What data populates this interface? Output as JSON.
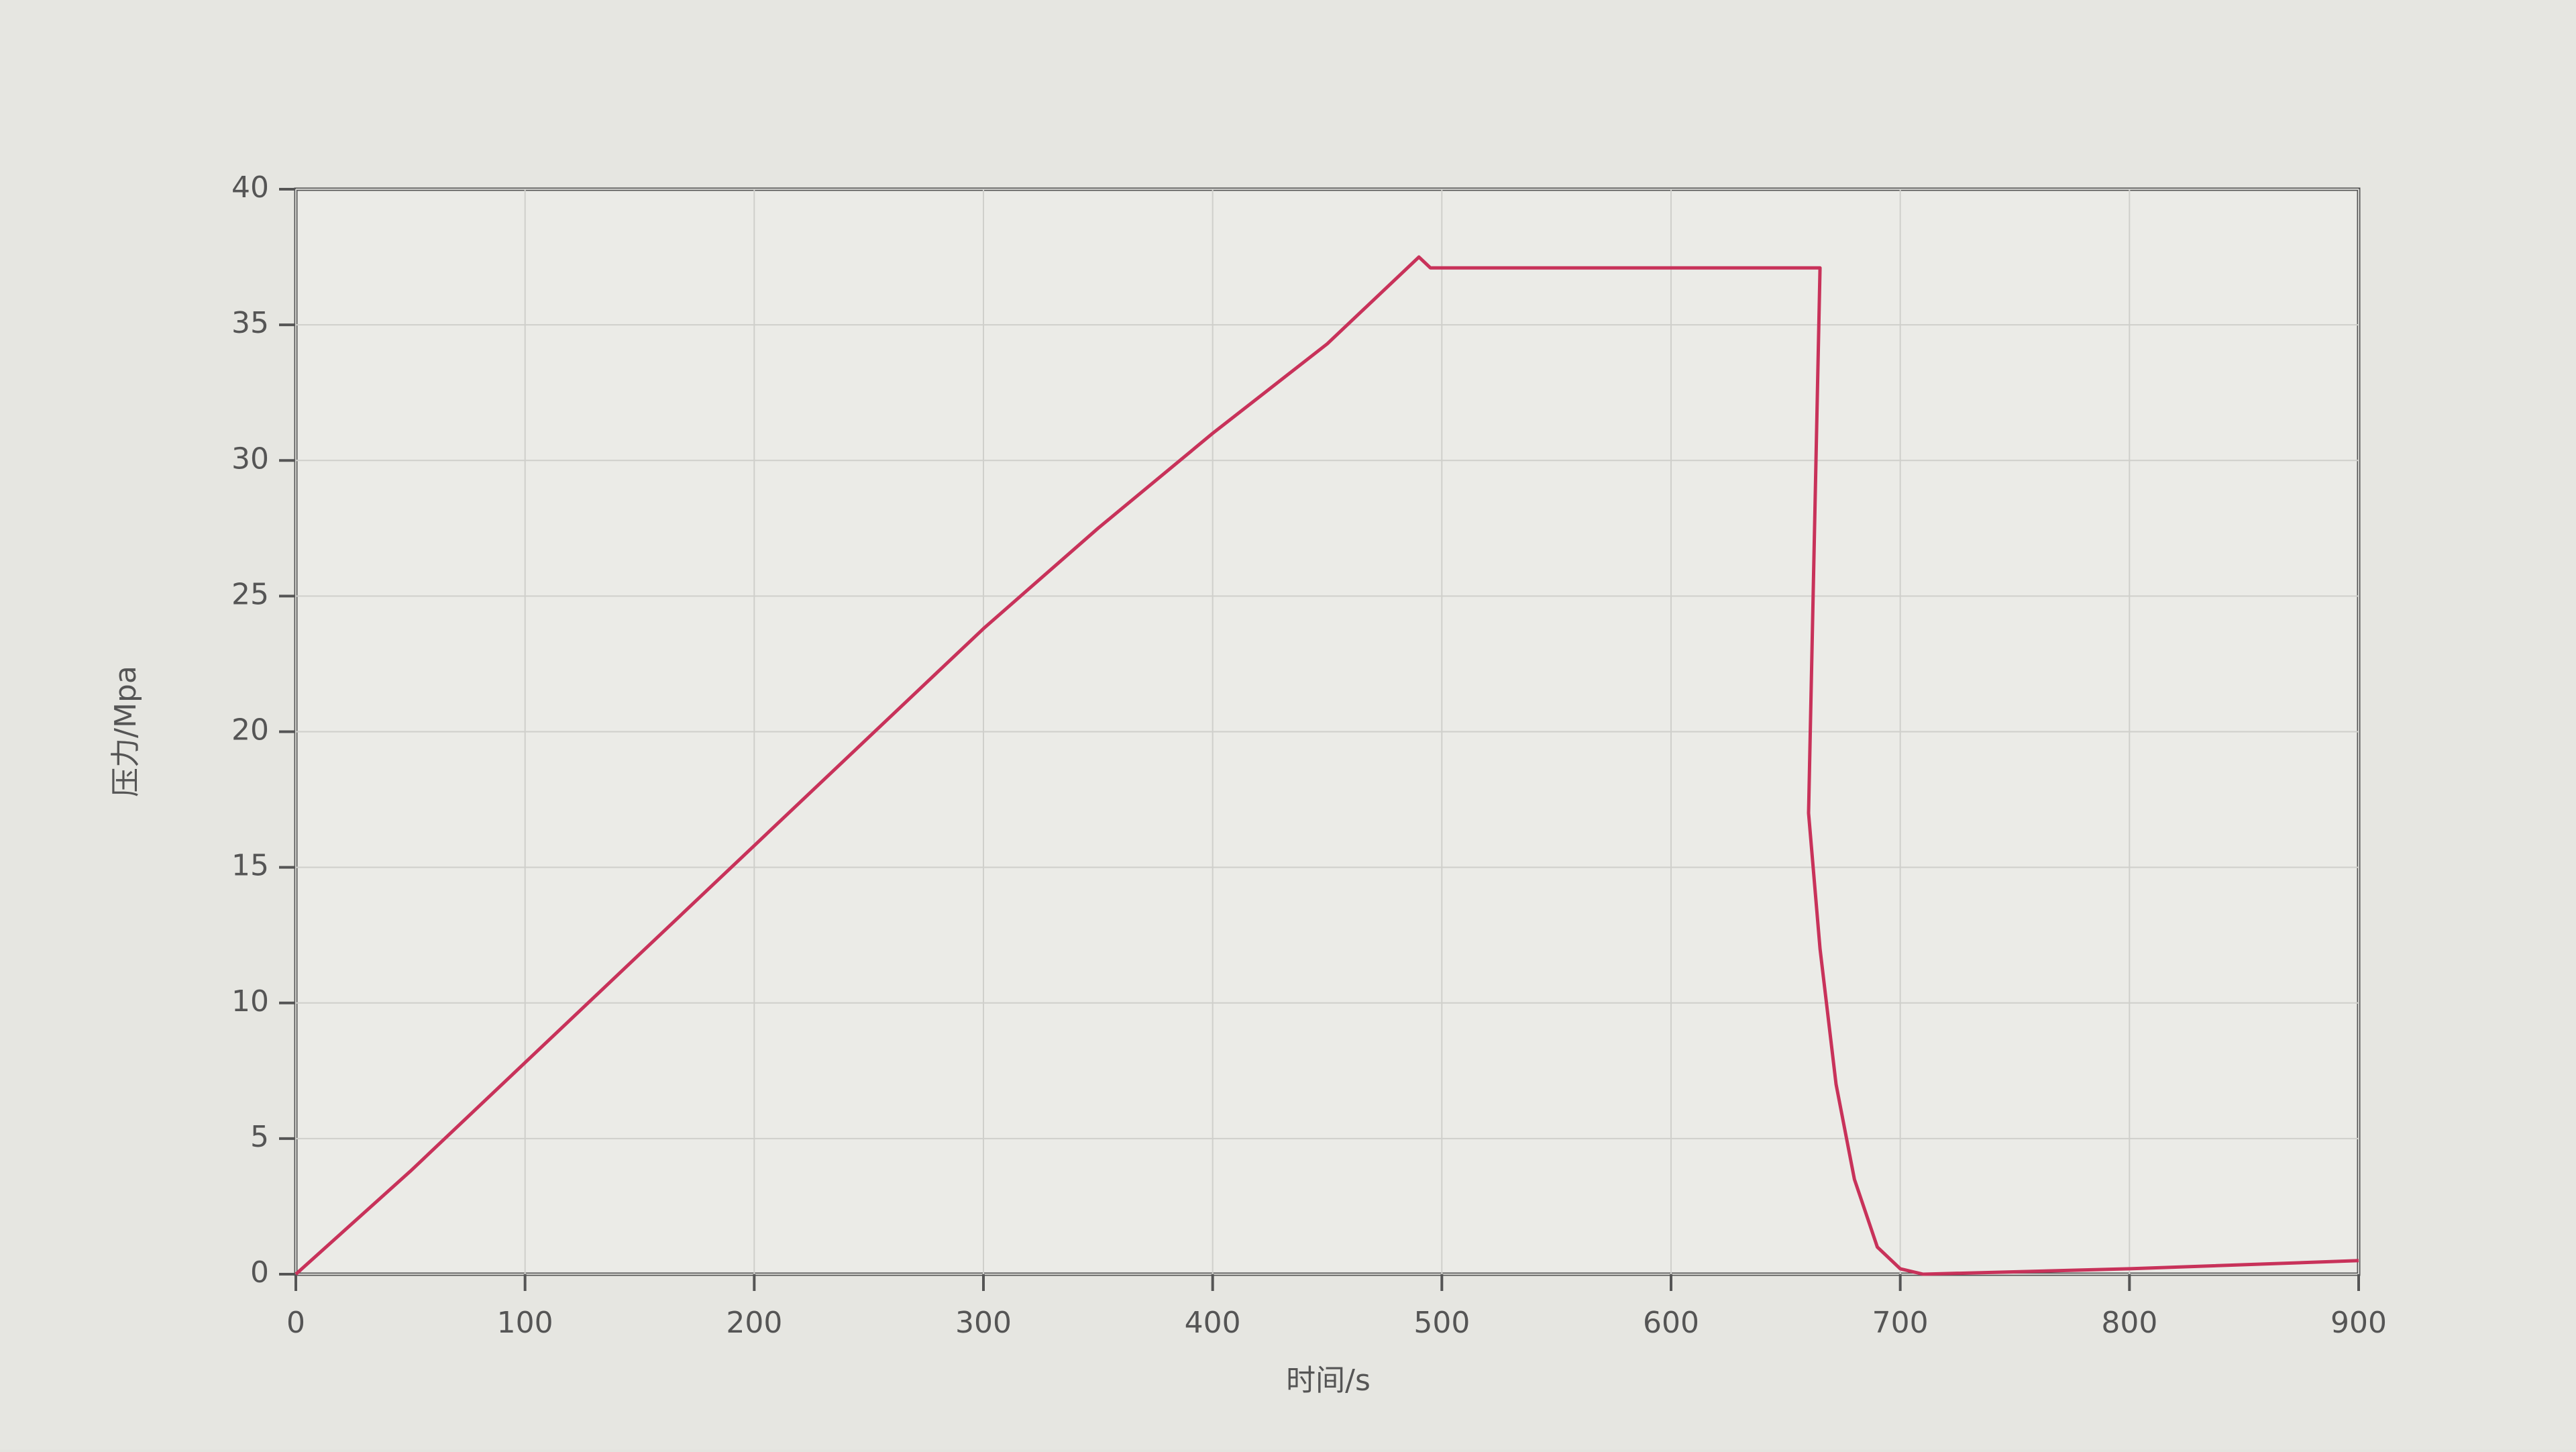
{
  "chart_data": {
    "type": "line",
    "x_label": "时间/s",
    "y_label": "压力/Mpa",
    "series": [
      {
        "name": "压力",
        "color": "#c8325a",
        "x": [
          0,
          50,
          100,
          150,
          200,
          250,
          300,
          350,
          400,
          450,
          490,
          495,
          665,
          660,
          665,
          672,
          680,
          690,
          700,
          710,
          800,
          900
        ],
        "values": [
          0,
          3.8,
          7.8,
          11.8,
          15.8,
          19.8,
          23.8,
          27.5,
          31,
          34.3,
          37.5,
          37.1,
          37.1,
          17,
          12,
          7,
          3.5,
          1,
          0.2,
          0,
          0.2,
          0.5
        ]
      }
    ],
    "xlim": [
      0,
      900
    ],
    "xticks": [
      0,
      100,
      200,
      300,
      400,
      500,
      600,
      700,
      800,
      900
    ],
    "ylim": [
      0,
      40
    ],
    "yticks": [
      0,
      5,
      10,
      15,
      20,
      25,
      30,
      35,
      40
    ],
    "grid": true
  }
}
